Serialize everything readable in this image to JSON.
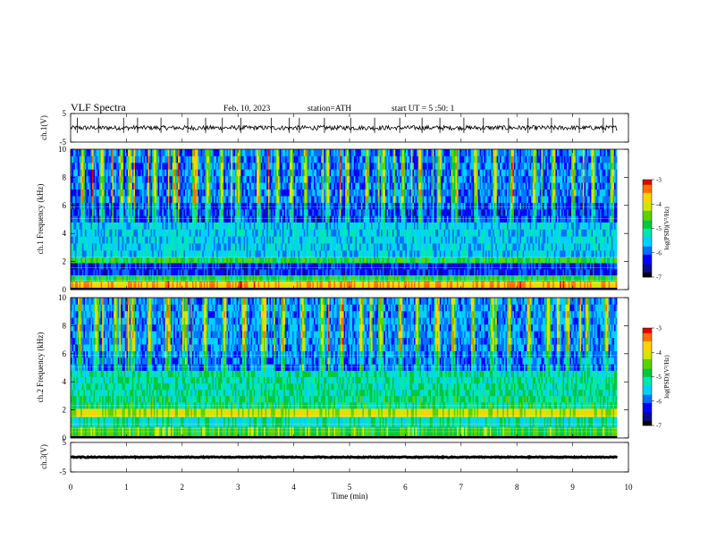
{
  "header": {
    "title": "VLF Spectra",
    "date": "Feb. 10, 2023",
    "station": "station=ATH",
    "start": "start UT =  5 :50: 1"
  },
  "colors": {
    "cmap": [
      "#000000",
      "#0a0a8c",
      "#0000ff",
      "#0070ff",
      "#00d0ff",
      "#00e6b0",
      "#00c83c",
      "#5ad200",
      "#d2e600",
      "#ffd200",
      "#ff6e00",
      "#e10000",
      "#ffffff"
    ],
    "trace": "#000000",
    "axis": "#000000"
  },
  "chart_data": [
    {
      "type": "line",
      "name": "ch1-waveform",
      "ylabel": "ch.1(V)",
      "ylim": [
        -5,
        5
      ],
      "yticks": [
        5,
        -5
      ],
      "xlim": [
        0,
        10
      ],
      "x_end": 9.8,
      "baseline": 0,
      "noise_amplitude": 0.8,
      "spikes": [
        0.12,
        0.5,
        0.95,
        1.2,
        1.62,
        2.1,
        2.42,
        2.72,
        3.05,
        3.6,
        3.92,
        4.1,
        4.55,
        5.02,
        5.45,
        5.9,
        6.3,
        6.62,
        7.05,
        7.4,
        7.85,
        8.2,
        8.62,
        9.12,
        9.55,
        9.72
      ]
    },
    {
      "type": "heatmap",
      "name": "ch1-spectrogram",
      "ylabel": "ch.1 Frequency (kHz)",
      "ylim": [
        0,
        10
      ],
      "yticks": [
        0,
        2,
        4,
        6,
        8,
        10
      ],
      "xlim": [
        0,
        10
      ],
      "x_end": 9.8,
      "colorbar": {
        "label": "log(PSD)(V²/Hz)",
        "range": [
          -7,
          -3
        ],
        "ticks": [
          -3,
          -4,
          -5,
          -6,
          -7
        ]
      },
      "bands_khz": [
        {
          "from": 0.0,
          "to": 0.15,
          "level": -7.0
        },
        {
          "from": 0.15,
          "to": 0.6,
          "level": -3.6
        },
        {
          "from": 0.6,
          "to": 1.0,
          "level": -4.8
        },
        {
          "from": 1.0,
          "to": 1.9,
          "level": -6.2
        },
        {
          "from": 1.9,
          "to": 2.3,
          "level": -4.8
        },
        {
          "from": 2.3,
          "to": 4.8,
          "level": -5.5
        },
        {
          "from": 4.8,
          "to": 6.2,
          "level": -6.1
        },
        {
          "from": 6.2,
          "to": 10.0,
          "level": -5.9
        }
      ],
      "bursts_min": [
        0.2,
        0.55,
        0.9,
        1.05,
        1.5,
        1.85,
        2.2,
        2.45,
        2.7,
        3.0,
        3.35,
        3.7,
        3.95,
        4.2,
        4.6,
        4.95,
        5.3,
        5.6,
        5.95,
        6.25,
        6.6,
        6.9,
        7.25,
        7.6,
        7.9,
        8.3,
        8.65,
        9.0,
        9.35,
        9.7
      ]
    },
    {
      "type": "heatmap",
      "name": "ch2-spectrogram",
      "ylabel": "ch.2 Frequency (kHz)",
      "ylim": [
        0,
        10
      ],
      "yticks": [
        0,
        2,
        4,
        6,
        8,
        10
      ],
      "xlim": [
        0,
        10
      ],
      "x_end": 9.8,
      "colorbar": {
        "label": "log(PSD)(V²/Hz)",
        "range": [
          -7,
          -3
        ],
        "ticks": [
          -3,
          -4,
          -5,
          -6,
          -7
        ]
      },
      "bands_khz": [
        {
          "from": 0.0,
          "to": 0.15,
          "level": -7.0
        },
        {
          "from": 0.15,
          "to": 0.8,
          "level": -4.6
        },
        {
          "from": 0.8,
          "to": 1.5,
          "level": -5.2
        },
        {
          "from": 1.5,
          "to": 2.1,
          "level": -4.1
        },
        {
          "from": 2.1,
          "to": 3.0,
          "level": -5.0
        },
        {
          "from": 3.0,
          "to": 4.8,
          "level": -5.1
        },
        {
          "from": 4.8,
          "to": 6.2,
          "level": -5.9
        },
        {
          "from": 6.2,
          "to": 10.0,
          "level": -5.8
        }
      ],
      "bursts_min": [
        0.15,
        0.45,
        0.8,
        1.1,
        1.4,
        1.75,
        2.05,
        2.4,
        2.75,
        3.1,
        3.45,
        3.8,
        4.15,
        4.5,
        4.85,
        5.2,
        5.55,
        5.9,
        6.2,
        6.55,
        6.85,
        7.2,
        7.55,
        7.85,
        8.2,
        8.55,
        8.9,
        9.25,
        9.6
      ]
    },
    {
      "type": "line",
      "name": "ch3-waveform",
      "ylabel": "ch.3(V)",
      "ylim": [
        -5,
        5
      ],
      "yticks": [
        5,
        -5
      ],
      "xlim": [
        0,
        10
      ],
      "x_end": 9.8,
      "baseline": 0,
      "noise_amplitude": 0.15,
      "spikes": []
    }
  ],
  "xaxis": {
    "label": "Time (min)",
    "ticks": [
      0,
      1,
      2,
      3,
      4,
      5,
      6,
      7,
      8,
      9,
      10
    ]
  }
}
